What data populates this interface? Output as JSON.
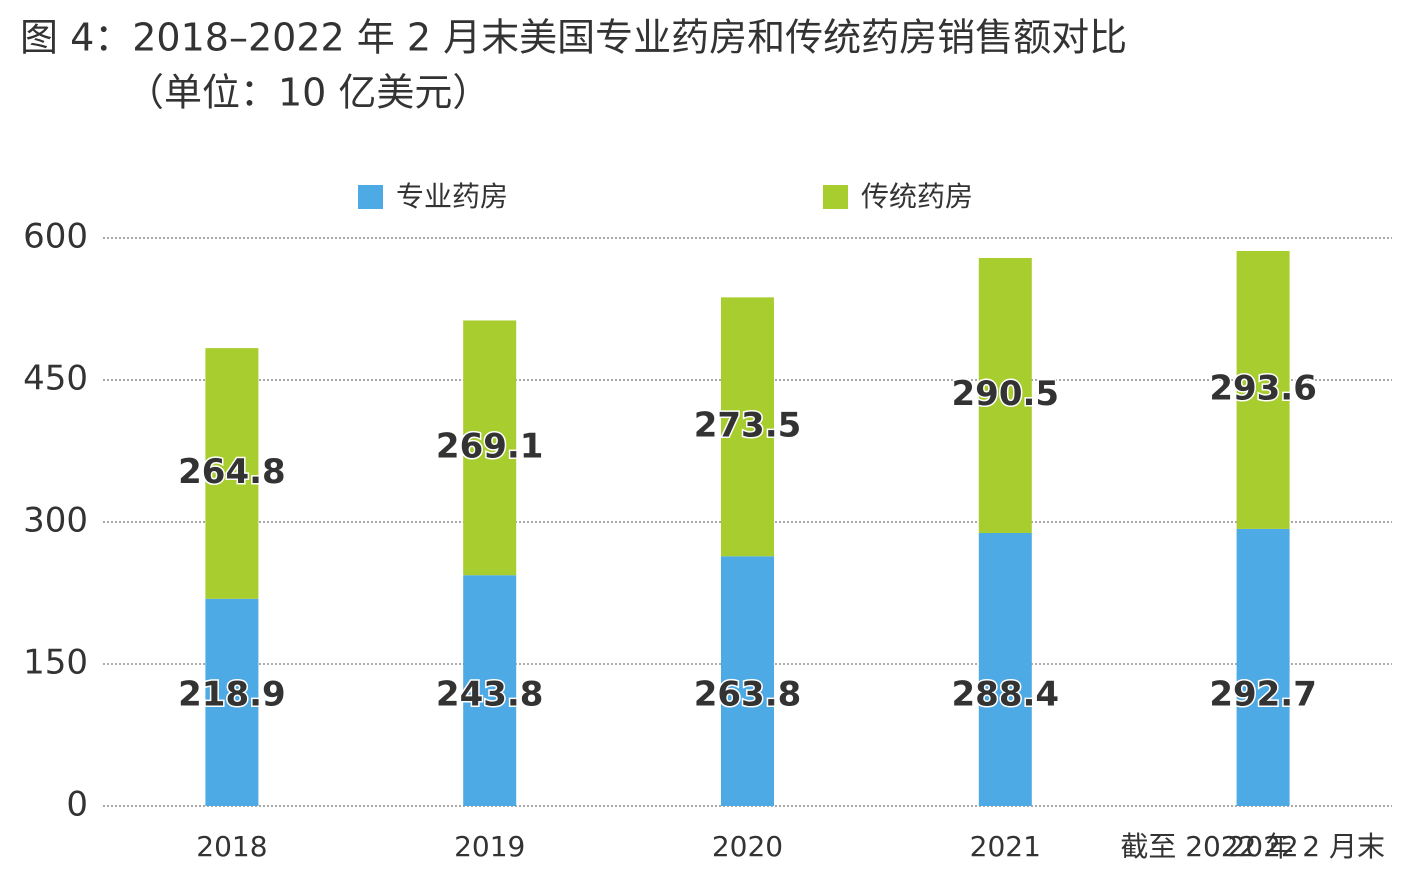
{
  "chart_data": {
    "type": "stacked_bar",
    "title": "图 4：2018–2022 年 2 月末美国专业药房和传统药房销售额对比",
    "subtitle": "（单位：10 亿美元）",
    "note": "截至 2022 年 2 月末",
    "categories": [
      "2018",
      "2019",
      "2020",
      "2021",
      "2022"
    ],
    "series": [
      {
        "name": "专业药房",
        "color": "#4eaae5",
        "values": [
          218.9,
          243.8,
          263.8,
          288.4,
          292.7
        ]
      },
      {
        "name": "传统药房",
        "color": "#a8cd2e",
        "values": [
          264.8,
          269.1,
          273.5,
          290.5,
          293.6
        ]
      }
    ],
    "ylim": [
      0,
      600
    ],
    "yticks": [
      0,
      150,
      300,
      450,
      600
    ],
    "grid": true
  }
}
